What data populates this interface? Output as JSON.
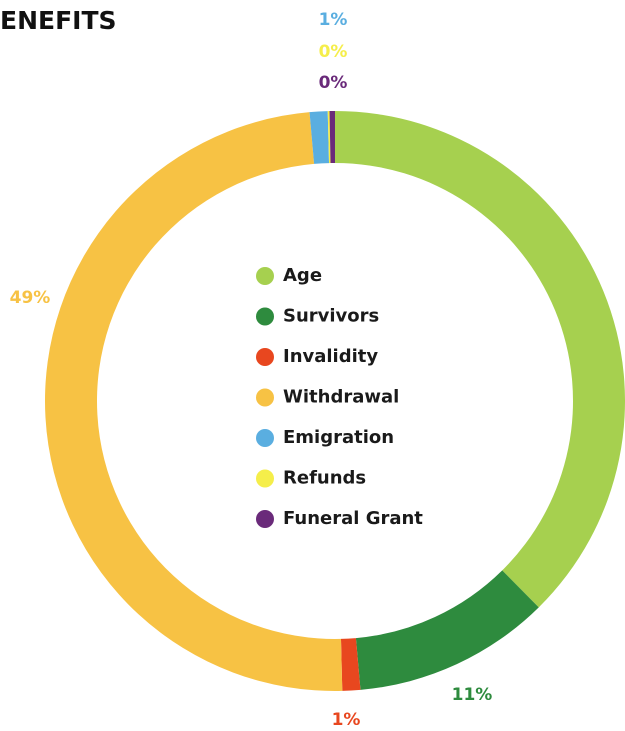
{
  "chart_data": {
    "type": "donut",
    "title": "ENEFITS",
    "categories": [
      "Age",
      "Survivors",
      "Invalidity",
      "Withdrawal",
      "Emigration",
      "Refunds",
      "Funeral Grant"
    ],
    "values": [
      37.6,
      11,
      1,
      49,
      1,
      0.1,
      0.3
    ],
    "value_labels": [
      null,
      "11%",
      "1%",
      "49%",
      "1%",
      "0%",
      "0%"
    ],
    "colors": [
      "#a6d04f",
      "#2e8b3e",
      "#e8471f",
      "#f7c244",
      "#5aaee0",
      "#f5ee4a",
      "#6a2a7a"
    ]
  }
}
